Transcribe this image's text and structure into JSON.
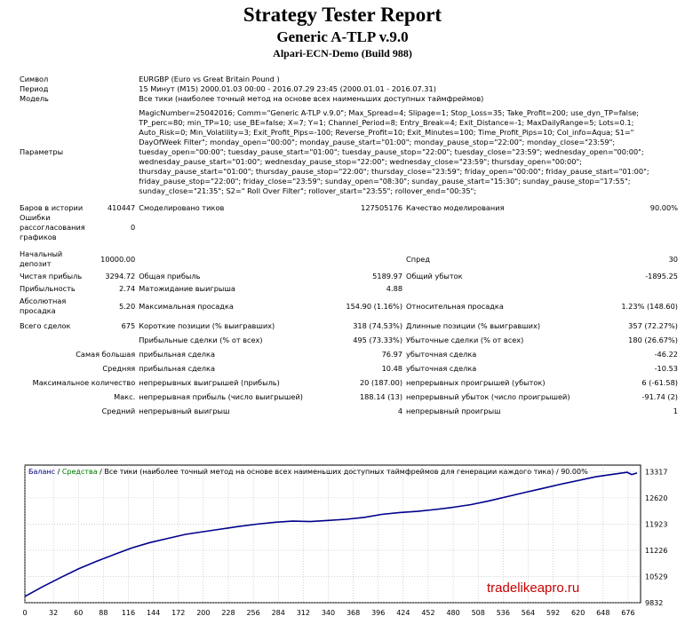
{
  "report": {
    "title": "Strategy Tester Report",
    "subtitle": "Generic A-TLP v.9.0",
    "server": "Alpari-ECN-Demo (Build 988)"
  },
  "info": {
    "symbol_label": "Символ",
    "symbol_value": "EURGBP (Euro vs Great Britain Pound )",
    "period_label": "Период",
    "period_value": "15 Минут (M15) 2000.01.03 00:00 - 2016.07.29 23:45 (2000.01.01 - 2016.07.31)",
    "model_label": "Модель",
    "model_value": "Все тики (наиболее точный метод на основе всех наименьших доступных таймфреймов)",
    "params_label": "Параметры",
    "params_lines": [
      "MagicNumber=25042016; Comm=\"Generic A-TLP v.9.0\"; Max_Spread=4; Slipage=1; Stop_Loss=35; Take_Profit=200; use_dyn_TP=false;",
      "TP_perc=80; min_TP=10; use_BE=false; X=7; Y=1; Channel_Period=8; Entry_Break=4; Exit_Distance=-1; MaxDailyRange=5; Lots=0.1;",
      "Auto_Risk=0; Min_Volatility=3; Exit_Profit_Pips=-100; Reverse_Profit=10; Exit_Minutes=100; Time_Profit_Pips=10; Col_info=Aqua; S1=\"",
      "DayOfWeek Filter\"; monday_open=\"00:00\"; monday_pause_start=\"01:00\"; monday_pause_stop=\"22:00\"; monday_close=\"23:59\";",
      "tuesday_open=\"00:00\"; tuesday_pause_start=\"01:00\"; tuesday_pause_stop=\"22:00\"; tuesday_close=\"23:59\"; wednesday_open=\"00:00\";",
      "wednesday_pause_start=\"01:00\"; wednesday_pause_stop=\"22:00\"; wednesday_close=\"23:59\"; thursday_open=\"00:00\";",
      "thursday_pause_start=\"01:00\"; thursday_pause_stop=\"22:00\"; thursday_close=\"23:59\"; friday_open=\"00:00\"; friday_pause_start=\"01:00\";",
      "friday_pause_stop=\"22:00\"; friday_close=\"23:59\"; sunday_open=\"08:30\"; sunday_pause_start=\"15:30\"; sunday_pause_stop=\"17:55\";",
      "sunday_close=\"21:35\"; S2=\" Roll Over Filter\"; rollover_start=\"23:55\"; rollover_end=\"00:35\";"
    ]
  },
  "stats": {
    "bars_label": "Баров в истории",
    "bars_value": "410447",
    "ticks_label": "Смоделировано тиков",
    "ticks_value": "127505176",
    "quality_label": "Качество моделирования",
    "quality_value": "90.00%",
    "errors_label_1": "Ошибки",
    "errors_label_2": "рассогласования",
    "errors_label_3": "графиков",
    "errors_value": "0",
    "deposit_label_1": "Начальный",
    "deposit_label_2": "депозит",
    "deposit_value": "10000.00",
    "spread_label": "Спред",
    "spread_value": "30",
    "net_label": "Чистая прибыль",
    "net_value": "3294.72",
    "gross_profit_label": "Общая прибыль",
    "gross_profit_value": "5189.97",
    "gross_loss_label": "Общий убыток",
    "gross_loss_value": "-1895.25",
    "pf_label": "Прибыльность",
    "pf_value": "2.74",
    "exp_label": "Матожидание выигрыша",
    "exp_value": "4.88",
    "abs_dd_label_1": "Абсолютная",
    "abs_dd_label_2": "просадка",
    "abs_dd_value": "5.20",
    "max_dd_label": "Максимальная просадка",
    "max_dd_value": "154.90 (1.16%)",
    "rel_dd_label": "Относительная просадка",
    "rel_dd_value": "1.23% (148.60)",
    "total_label": "Всего сделок",
    "total_value": "675",
    "short_label": "Короткие позиции (% выигравших)",
    "short_value": "318 (74.53%)",
    "long_label": "Длинные позиции (% выигравших)",
    "long_value": "357 (72.27%)",
    "win_label": "Прибыльные сделки (% от всех)",
    "win_value": "495 (73.33%)",
    "loss_label": "Убыточные сделки (% от всех)",
    "loss_value": "180 (26.67%)",
    "largest_label": "Самая большая",
    "largest_win_label": "прибыльная сделка",
    "largest_win_value": "76.97",
    "largest_loss_label": "убыточная сделка",
    "largest_loss_value": "-46.22",
    "avg_label": "Средняя",
    "avg_win_label": "прибыльная сделка",
    "avg_win_value": "10.48",
    "avg_loss_label": "убыточная сделка",
    "avg_loss_value": "-10.53",
    "maxcount_label": "Максимальное количество",
    "maxcons_win_label": "непрерывных выигрышей (прибыль)",
    "maxcons_win_value": "20 (187.00)",
    "maxcons_loss_label": "непрерывных проигрышей (убыток)",
    "maxcons_loss_value": "6 (-61.58)",
    "maxamt_label": "Макс.",
    "maxamt_win_label": "непрерывная прибыль (число выигрышей)",
    "maxamt_win_value": "188.14 (13)",
    "maxamt_loss_label": "непрерывный убыток (число проигрышей)",
    "maxamt_loss_value": "-91.74 (2)",
    "avgcons_label": "Средний",
    "avgcons_win_label": "непрерывный выигрыш",
    "avgcons_win_value": "4",
    "avgcons_loss_label": "непрерывный проигрыш",
    "avgcons_loss_value": "1"
  },
  "chart_data": {
    "type": "line",
    "legend": {
      "balance": "Баланс",
      "sep1": " / ",
      "equity": "Средства",
      "sep2": " / ",
      "info": "Все тики (наиболее точный метод на основе всех наименьших доступных таймфреймов для генерации каждого тика)",
      "sep3": " / ",
      "quality": "90.00%"
    },
    "x_ticks": [
      0,
      32,
      60,
      88,
      116,
      144,
      172,
      200,
      228,
      256,
      284,
      312,
      340,
      368,
      396,
      424,
      452,
      480,
      508,
      536,
      564,
      592,
      620,
      648,
      676
    ],
    "y_ticks": [
      "13317",
      "12620",
      "11923",
      "11226",
      "10529",
      "9832"
    ],
    "xlim": [
      0,
      690
    ],
    "ylim": [
      9832,
      13490
    ],
    "series": [
      {
        "name": "Баланс",
        "color": "#00008b",
        "x": [
          0,
          20,
          40,
          60,
          80,
          100,
          120,
          140,
          160,
          180,
          200,
          220,
          240,
          260,
          280,
          300,
          320,
          340,
          360,
          380,
          400,
          420,
          440,
          460,
          480,
          500,
          520,
          540,
          560,
          580,
          600,
          620,
          640,
          660,
          675,
          680,
          686
        ],
        "y": [
          10000,
          10260,
          10500,
          10730,
          10930,
          11110,
          11290,
          11430,
          11540,
          11650,
          11720,
          11790,
          11860,
          11920,
          11970,
          12000,
          11990,
          12020,
          12050,
          12100,
          12180,
          12230,
          12260,
          12310,
          12370,
          12440,
          12540,
          12650,
          12760,
          12870,
          12980,
          13080,
          13180,
          13250,
          13300,
          13240,
          13280
        ]
      }
    ]
  },
  "watermark": "tradelikeapro.ru",
  "colors": {
    "balance": "#00008b",
    "equity": "#008000",
    "grid": "#b4b4b4",
    "watermark": "#c80000"
  }
}
